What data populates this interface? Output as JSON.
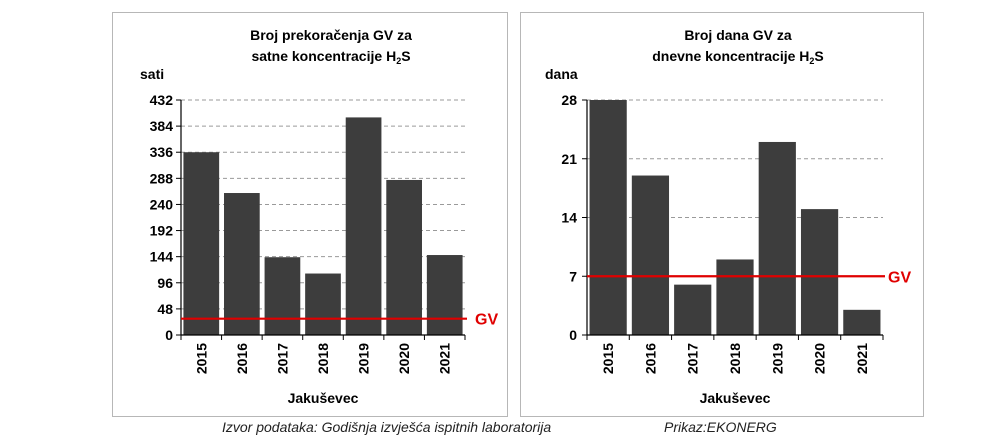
{
  "chart_data": [
    {
      "type": "bar",
      "title_lines": [
        "Broj prekoračenja GV za",
        "satne koncentracije"
      ],
      "title_chem": {
        "main": "H",
        "sub": "2",
        "tail": "S"
      },
      "ylabel": "sati",
      "xlabel": "Jakuševec",
      "categories": [
        "2015",
        "2016",
        "2017",
        "2018",
        "2019",
        "2020",
        "2021"
      ],
      "values": [
        336,
        261,
        143,
        113,
        400,
        285,
        147
      ],
      "ylim": [
        0,
        432
      ],
      "yticks": [
        0,
        48,
        96,
        144,
        192,
        240,
        288,
        336,
        384,
        432
      ],
      "limit": {
        "label": "GV",
        "value": 30,
        "color": "#e00000"
      },
      "bar_color": "#3d3d3d",
      "grid": "horizontal dashed"
    },
    {
      "type": "bar",
      "title_lines": [
        "Broj dana GV za",
        "dnevne koncentracije"
      ],
      "title_chem": {
        "main": "H",
        "sub": "2",
        "tail": "S"
      },
      "ylabel": "dana",
      "xlabel": "Jakuševec",
      "categories": [
        "2015",
        "2016",
        "2017",
        "2018",
        "2019",
        "2020",
        "2021"
      ],
      "values": [
        28,
        19,
        6,
        9,
        23,
        15,
        3
      ],
      "ylim": [
        0,
        28
      ],
      "yticks": [
        0,
        7,
        14,
        21,
        28
      ],
      "limit": {
        "label": "GV",
        "value": 7,
        "color": "#e00000"
      },
      "bar_color": "#3d3d3d",
      "grid": "horizontal dashed"
    }
  ],
  "footer": {
    "source": "Izvor podataka: Godišnja izvješća ispitnih laboratorija",
    "credit": "Prikaz:EKONERG"
  }
}
